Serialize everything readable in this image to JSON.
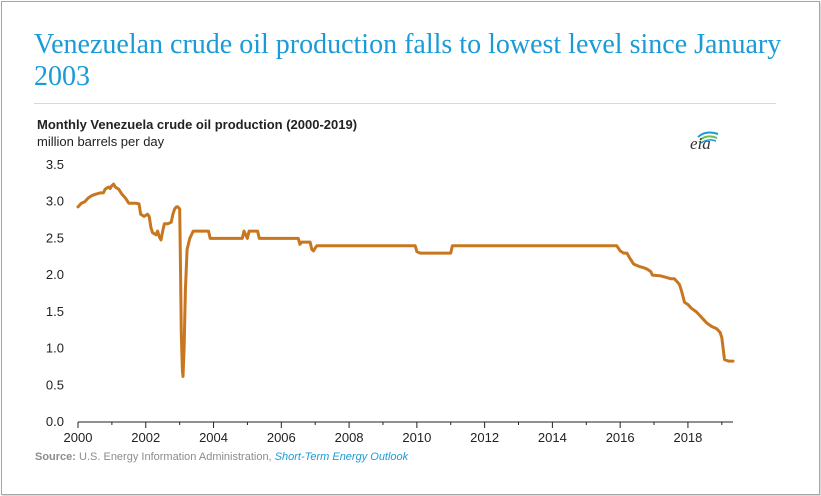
{
  "headline": "Venezuelan crude oil production falls to lowest level since January 2003",
  "logo_text": "eia",
  "source": {
    "label": "Source:",
    "agency": "U.S. Energy Information Administration,",
    "publication": "Short-Term Energy Outlook"
  },
  "colors": {
    "headline": "#1a9bd7",
    "line": "#c8761f",
    "axis": "#222222",
    "source_link": "#1a9bd7"
  },
  "chart_data": {
    "type": "line",
    "title": "Monthly Venezuela crude oil production (2000-2019)",
    "ylabel": "million barrels per day",
    "xlabel": "",
    "xlim": [
      2000,
      2019.33
    ],
    "ylim": [
      0,
      3.5
    ],
    "x_ticks": [
      "2000",
      "2002",
      "2004",
      "2006",
      "2008",
      "2010",
      "2012",
      "2014",
      "2016",
      "2018"
    ],
    "x_tick_values": [
      2000,
      2002,
      2004,
      2006,
      2008,
      2010,
      2012,
      2014,
      2016,
      2018
    ],
    "y_ticks": [
      "0.0",
      "0.5",
      "1.0",
      "1.5",
      "2.0",
      "2.5",
      "3.0",
      "3.5"
    ],
    "y_tick_values": [
      0,
      0.5,
      1.0,
      1.5,
      2.0,
      2.5,
      3.0,
      3.5
    ],
    "grid": false,
    "legend": "none",
    "series": [
      {
        "values": [
          [
            2000.0,
            2.93
          ],
          [
            2000.1,
            2.98
          ],
          [
            2000.2,
            3.0
          ],
          [
            2000.3,
            3.05
          ],
          [
            2000.4,
            3.08
          ],
          [
            2000.5,
            3.1
          ],
          [
            2000.65,
            3.12
          ],
          [
            2000.75,
            3.12
          ],
          [
            2000.8,
            3.17
          ],
          [
            2000.9,
            3.2
          ],
          [
            2000.95,
            3.18
          ],
          [
            2001.0,
            3.22
          ],
          [
            2001.05,
            3.24
          ],
          [
            2001.1,
            3.2
          ],
          [
            2001.2,
            3.17
          ],
          [
            2001.3,
            3.1
          ],
          [
            2001.4,
            3.05
          ],
          [
            2001.5,
            2.98
          ],
          [
            2001.7,
            2.98
          ],
          [
            2001.8,
            2.97
          ],
          [
            2001.85,
            2.83
          ],
          [
            2001.95,
            2.8
          ],
          [
            2002.05,
            2.83
          ],
          [
            2002.1,
            2.8
          ],
          [
            2002.15,
            2.65
          ],
          [
            2002.2,
            2.58
          ],
          [
            2002.3,
            2.55
          ],
          [
            2002.35,
            2.6
          ],
          [
            2002.4,
            2.52
          ],
          [
            2002.45,
            2.48
          ],
          [
            2002.5,
            2.6
          ],
          [
            2002.55,
            2.7
          ],
          [
            2002.65,
            2.7
          ],
          [
            2002.75,
            2.72
          ],
          [
            2002.8,
            2.83
          ],
          [
            2002.85,
            2.9
          ],
          [
            2002.9,
            2.93
          ],
          [
            2002.95,
            2.93
          ],
          [
            2003.0,
            2.9
          ],
          [
            2003.02,
            2.3
          ],
          [
            2003.05,
            1.2
          ],
          [
            2003.08,
            0.7
          ],
          [
            2003.1,
            0.62
          ],
          [
            2003.13,
            1.0
          ],
          [
            2003.17,
            1.8
          ],
          [
            2003.22,
            2.35
          ],
          [
            2003.3,
            2.5
          ],
          [
            2003.4,
            2.6
          ],
          [
            2003.55,
            2.6
          ],
          [
            2003.7,
            2.6
          ],
          [
            2003.85,
            2.6
          ],
          [
            2003.9,
            2.5
          ],
          [
            2004.0,
            2.5
          ],
          [
            2004.5,
            2.5
          ],
          [
            2004.85,
            2.5
          ],
          [
            2004.9,
            2.6
          ],
          [
            2004.95,
            2.55
          ],
          [
            2005.0,
            2.5
          ],
          [
            2005.05,
            2.6
          ],
          [
            2005.2,
            2.6
          ],
          [
            2005.3,
            2.6
          ],
          [
            2005.35,
            2.5
          ],
          [
            2005.5,
            2.5
          ],
          [
            2006.0,
            2.5
          ],
          [
            2006.4,
            2.5
          ],
          [
            2006.5,
            2.5
          ],
          [
            2006.55,
            2.42
          ],
          [
            2006.6,
            2.45
          ],
          [
            2006.75,
            2.45
          ],
          [
            2006.85,
            2.45
          ],
          [
            2006.9,
            2.35
          ],
          [
            2006.95,
            2.33
          ],
          [
            2007.0,
            2.37
          ],
          [
            2007.05,
            2.4
          ],
          [
            2007.5,
            2.4
          ],
          [
            2008.0,
            2.4
          ],
          [
            2009.0,
            2.4
          ],
          [
            2009.95,
            2.4
          ],
          [
            2010.0,
            2.32
          ],
          [
            2010.1,
            2.3
          ],
          [
            2010.5,
            2.3
          ],
          [
            2011.0,
            2.3
          ],
          [
            2011.05,
            2.4
          ],
          [
            2012.0,
            2.4
          ],
          [
            2013.0,
            2.4
          ],
          [
            2014.0,
            2.4
          ],
          [
            2015.0,
            2.4
          ],
          [
            2015.9,
            2.4
          ],
          [
            2016.0,
            2.33
          ],
          [
            2016.1,
            2.3
          ],
          [
            2016.2,
            2.3
          ],
          [
            2016.3,
            2.22
          ],
          [
            2016.4,
            2.15
          ],
          [
            2016.55,
            2.12
          ],
          [
            2016.7,
            2.1
          ],
          [
            2016.8,
            2.08
          ],
          [
            2016.9,
            2.05
          ],
          [
            2016.95,
            2.0
          ],
          [
            2017.2,
            1.99
          ],
          [
            2017.35,
            1.97
          ],
          [
            2017.5,
            1.95
          ],
          [
            2017.6,
            1.95
          ],
          [
            2017.7,
            1.9
          ],
          [
            2017.75,
            1.87
          ],
          [
            2017.8,
            1.8
          ],
          [
            2017.9,
            1.63
          ],
          [
            2018.0,
            1.6
          ],
          [
            2018.1,
            1.55
          ],
          [
            2018.25,
            1.5
          ],
          [
            2018.35,
            1.45
          ],
          [
            2018.45,
            1.4
          ],
          [
            2018.55,
            1.35
          ],
          [
            2018.7,
            1.3
          ],
          [
            2018.85,
            1.27
          ],
          [
            2018.95,
            1.22
          ],
          [
            2019.0,
            1.15
          ],
          [
            2019.08,
            0.85
          ],
          [
            2019.2,
            0.83
          ],
          [
            2019.33,
            0.83
          ]
        ]
      }
    ]
  }
}
